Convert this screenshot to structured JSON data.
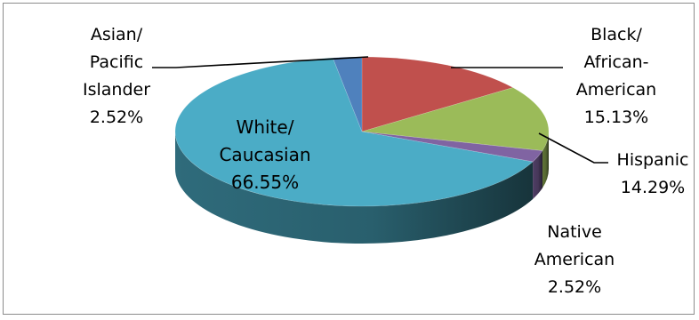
{
  "chart_data": {
    "type": "pie",
    "title": "",
    "three_d": true,
    "start_angle_deg": -90,
    "direction": "clockwise",
    "slices": [
      {
        "label_lines": [
          "Black/",
          "African-",
          "American"
        ],
        "percent_label": "15.13%",
        "value": 15.13,
        "color": "#c0504d"
      },
      {
        "label_lines": [
          "Hispanic"
        ],
        "percent_label": "14.29%",
        "value": 14.29,
        "color": "#9bbb59"
      },
      {
        "label_lines": [
          "Native",
          "American"
        ],
        "percent_label": "2.52%",
        "value": 2.52,
        "color": "#8064a2"
      },
      {
        "label_lines": [
          "White/",
          "Caucasian"
        ],
        "percent_label": "66.55%",
        "value": 66.55,
        "color": "#4bacc6"
      },
      {
        "label_lines": [
          "Asian/",
          "Pacific",
          "Islander"
        ],
        "percent_label": "2.52%",
        "value": 2.52,
        "color": "#4f81bd"
      }
    ]
  }
}
